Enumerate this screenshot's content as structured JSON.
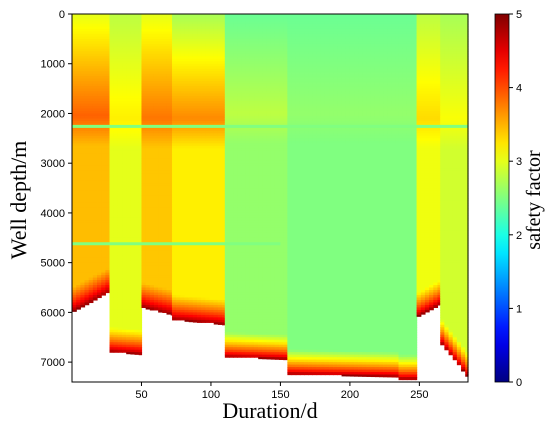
{
  "chart_data": {
    "type": "heatmap",
    "xlabel": "Duration/d",
    "ylabel": "Well depth/m",
    "colorbar_label": "safety factor",
    "xlim": [
      0,
      285
    ],
    "ylim": [
      7400,
      0
    ],
    "x_ticks": [
      50,
      100,
      150,
      200,
      250
    ],
    "y_ticks": [
      0,
      1000,
      2000,
      3000,
      4000,
      5000,
      6000,
      7000
    ],
    "colorbar_range": [
      0,
      5
    ],
    "colorbar_ticks": [
      0,
      1,
      2,
      3,
      4,
      5
    ],
    "colormap": "jet",
    "segments": [
      {
        "x": [
          0,
          27
        ],
        "bottom_depth": [
          6000,
          5600
        ],
        "surface_sf": 3.0,
        "peak_sf": 3.9,
        "peak_depth": 2050
      },
      {
        "x": [
          27,
          50
        ],
        "bottom_depth": [
          6800,
          6850
        ],
        "surface_sf": 2.8,
        "peak_sf": 3.2,
        "peak_depth": 2100
      },
      {
        "x": [
          50,
          72
        ],
        "bottom_depth": [
          5900,
          6050
        ],
        "surface_sf": 3.0,
        "peak_sf": 3.8,
        "peak_depth": 2100
      },
      {
        "x": [
          72,
          110
        ],
        "bottom_depth": [
          6150,
          6250
        ],
        "surface_sf": 2.7,
        "peak_sf": 3.7,
        "peak_depth": 2100
      },
      {
        "x": [
          110,
          155
        ],
        "bottom_depth": [
          6900,
          6950
        ],
        "surface_sf": 2.4,
        "peak_sf": 2.8,
        "peak_depth": 2000
      },
      {
        "x": [
          155,
          235
        ],
        "bottom_depth": [
          7250,
          7300
        ],
        "surface_sf": 2.4,
        "peak_sf": 2.6,
        "peak_depth": 2000
      },
      {
        "x": [
          235,
          248
        ],
        "bottom_depth": [
          7350,
          7350
        ],
        "surface_sf": 2.4,
        "peak_sf": 2.6,
        "peak_depth": 2000
      },
      {
        "x": [
          248,
          265
        ],
        "bottom_depth": [
          6100,
          5850
        ],
        "surface_sf": 2.8,
        "peak_sf": 3.3,
        "peak_depth": 2100
      },
      {
        "x": [
          265,
          285
        ],
        "bottom_depth": [
          6600,
          7300
        ],
        "surface_sf": 2.7,
        "peak_sf": 3.1,
        "peak_depth": 2100
      }
    ],
    "horizontal_lines": [
      {
        "depth": 2260,
        "sf": 2.5,
        "x": [
          0,
          285
        ]
      },
      {
        "depth": 4620,
        "sf": 2.5,
        "x": [
          0,
          150
        ]
      }
    ]
  }
}
